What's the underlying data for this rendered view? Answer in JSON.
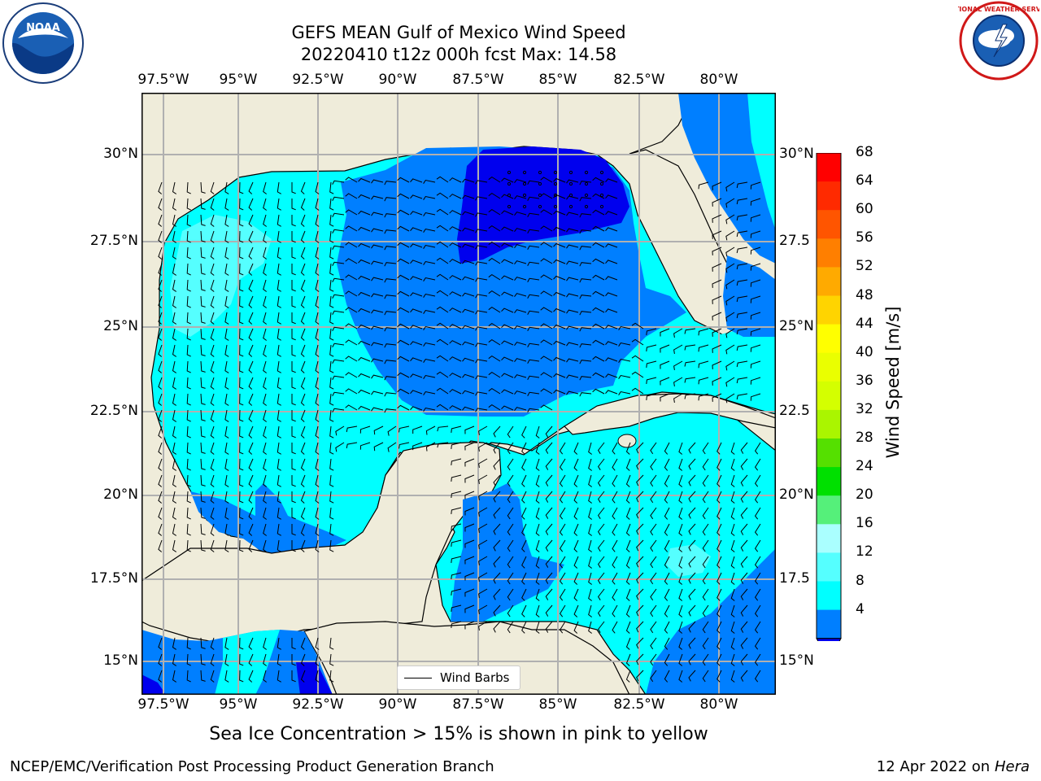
{
  "title": {
    "line1": "GEFS MEAN Gulf of Mexico Wind Speed",
    "line2": "20220410 t12z 000h fcst   Max: 14.58"
  },
  "axes": {
    "lon_ticks": [
      "97.5°W",
      "95°W",
      "92.5°W",
      "90°W",
      "87.5°W",
      "85°W",
      "82.5°W",
      "80°W"
    ],
    "lat_ticks_left": [
      "30°N",
      "27.5°N",
      "25°N",
      "22.5°N",
      "20°N",
      "17.5°N",
      "15°N"
    ],
    "lat_ticks_right": [
      "30°N",
      "27.5",
      "25°N",
      "22.5",
      "20°N",
      "17.5",
      "15°N"
    ]
  },
  "colorbar": {
    "title": "Wind Speed [m/s]",
    "ticks": [
      "68",
      "64",
      "60",
      "56",
      "52",
      "48",
      "44",
      "40",
      "36",
      "32",
      "28",
      "24",
      "20",
      "16",
      "12",
      "8",
      "4"
    ],
    "colors": [
      "#ff0000",
      "#ff2a00",
      "#ff5500",
      "#ff7f00",
      "#ffaa00",
      "#ffd400",
      "#ffff00",
      "#eaff00",
      "#d4ff00",
      "#aaf500",
      "#55e000",
      "#00e000",
      "#55f07a",
      "#aaffff",
      "#55ffff",
      "#00ffff",
      "#007fff"
    ],
    "under_color": "#0000ee"
  },
  "legend": {
    "label": "Wind Barbs"
  },
  "note": "Sea Ice Concentration > 15% is shown in pink to yellow",
  "credit_left": "NCEP/EMC/Verification Post Processing Product Generation Branch",
  "credit_right_prefix": "12 Apr 2022 on ",
  "credit_right_machine": "Hera",
  "logos": {
    "noaa": "noaa-logo",
    "nws": "nws-logo"
  },
  "colors": {
    "land": "#efecda",
    "water_8_12": "#00ffff",
    "water_12_16": "#55ffff",
    "water_4_8": "#007fff",
    "water_under_4": "#0000ee",
    "grid": "#b0b0b0"
  }
}
